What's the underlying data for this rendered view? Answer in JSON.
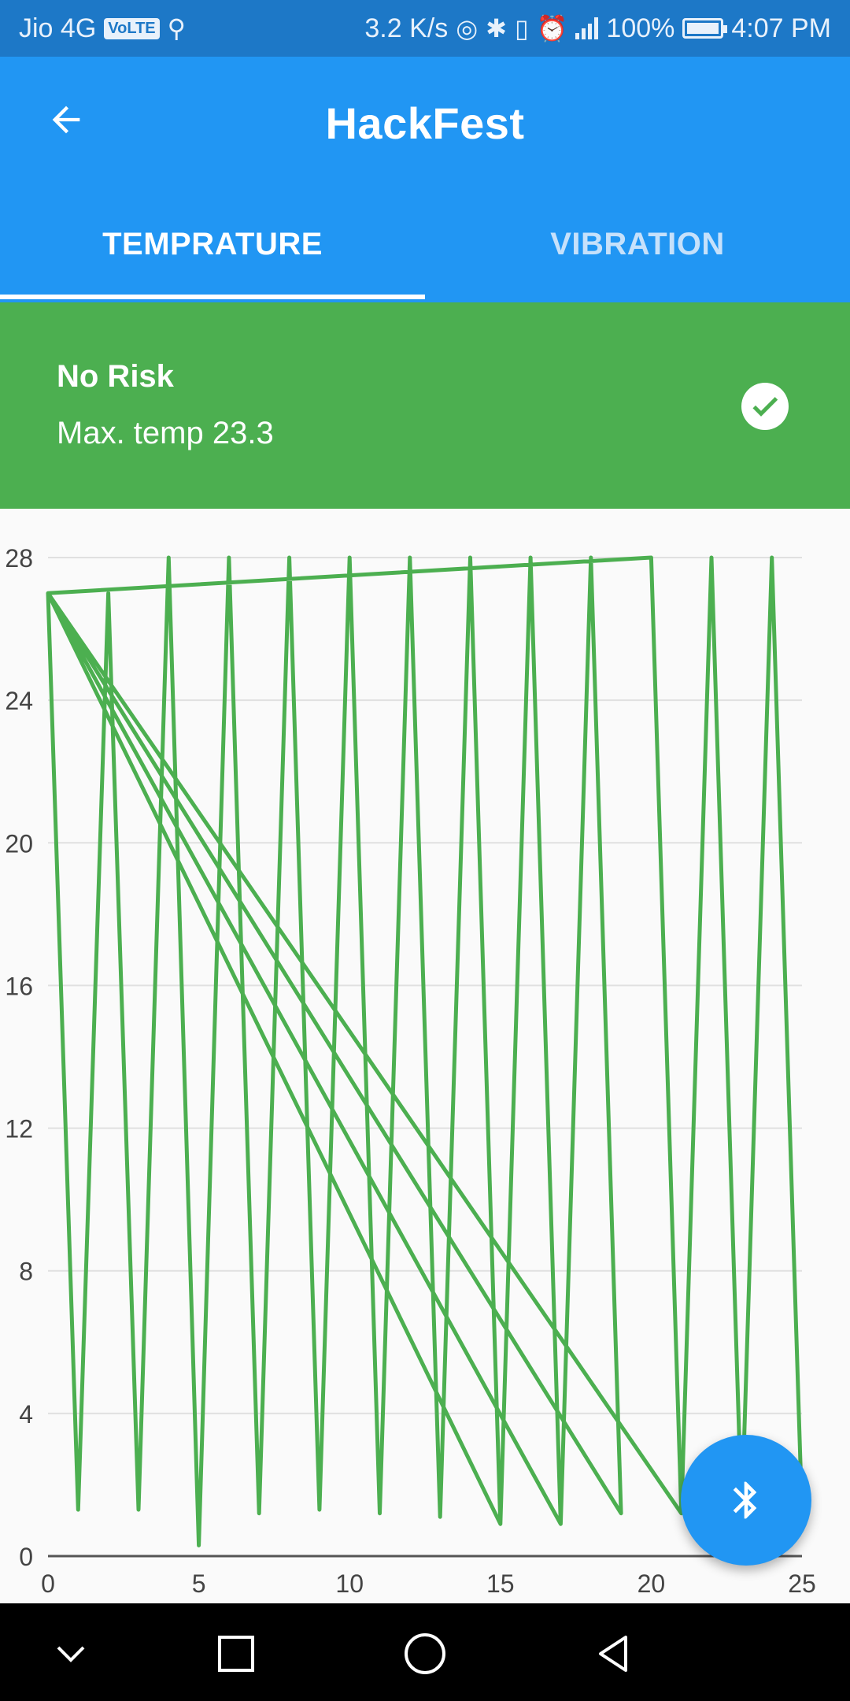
{
  "status_bar": {
    "carrier": "Jio 4G",
    "volte": "VoLTE",
    "speed": "3.2 K/s",
    "battery": "100%",
    "time": "4:07 PM"
  },
  "app_bar": {
    "title": "HackFest",
    "tabs": [
      {
        "label": "TEMPRATURE",
        "selected": true
      },
      {
        "label": "VIBRATION",
        "selected": false
      }
    ]
  },
  "risk_banner": {
    "status": "No Risk",
    "max_temp": "Max. temp 23.3",
    "color": "#4caf50"
  },
  "fab": {
    "icon": "bluetooth-icon"
  },
  "colors": {
    "primary": "#2196f3",
    "status_bar": "#1d78c7",
    "line": "#4caf50"
  },
  "chart_data": {
    "type": "line",
    "x_ticks": [
      "0",
      "5",
      "10",
      "15",
      "20",
      "25"
    ],
    "y_ticks": [
      "0",
      "4",
      "8",
      "12",
      "16",
      "20",
      "24",
      "28"
    ],
    "xlim": [
      0,
      25
    ],
    "ylim": [
      0,
      28
    ],
    "grid": true,
    "series": [
      {
        "values": [
          [
            0,
            27
          ],
          [
            1,
            1.3
          ],
          [
            2,
            27
          ],
          [
            3,
            1.3
          ],
          [
            4,
            28
          ],
          [
            5,
            0.3
          ],
          [
            6,
            28
          ],
          [
            7,
            1.2
          ],
          [
            8,
            28
          ],
          [
            9,
            1.3
          ],
          [
            10,
            28
          ],
          [
            11,
            1.2
          ],
          [
            12,
            28
          ],
          [
            13,
            1.1
          ],
          [
            14,
            28
          ],
          [
            15,
            0.9
          ],
          [
            0,
            27
          ],
          [
            15,
            0.9
          ],
          [
            16,
            28
          ],
          [
            17,
            0.9
          ],
          [
            0,
            27
          ],
          [
            17,
            0.9
          ],
          [
            18,
            28
          ],
          [
            19,
            1.2
          ],
          [
            0,
            27
          ],
          [
            20,
            28
          ],
          [
            21,
            1.2
          ],
          [
            0,
            27
          ],
          [
            21,
            1.2
          ],
          [
            22,
            28
          ],
          [
            23,
            1.1
          ],
          [
            24,
            28
          ],
          [
            25,
            1.2
          ]
        ]
      }
    ]
  }
}
